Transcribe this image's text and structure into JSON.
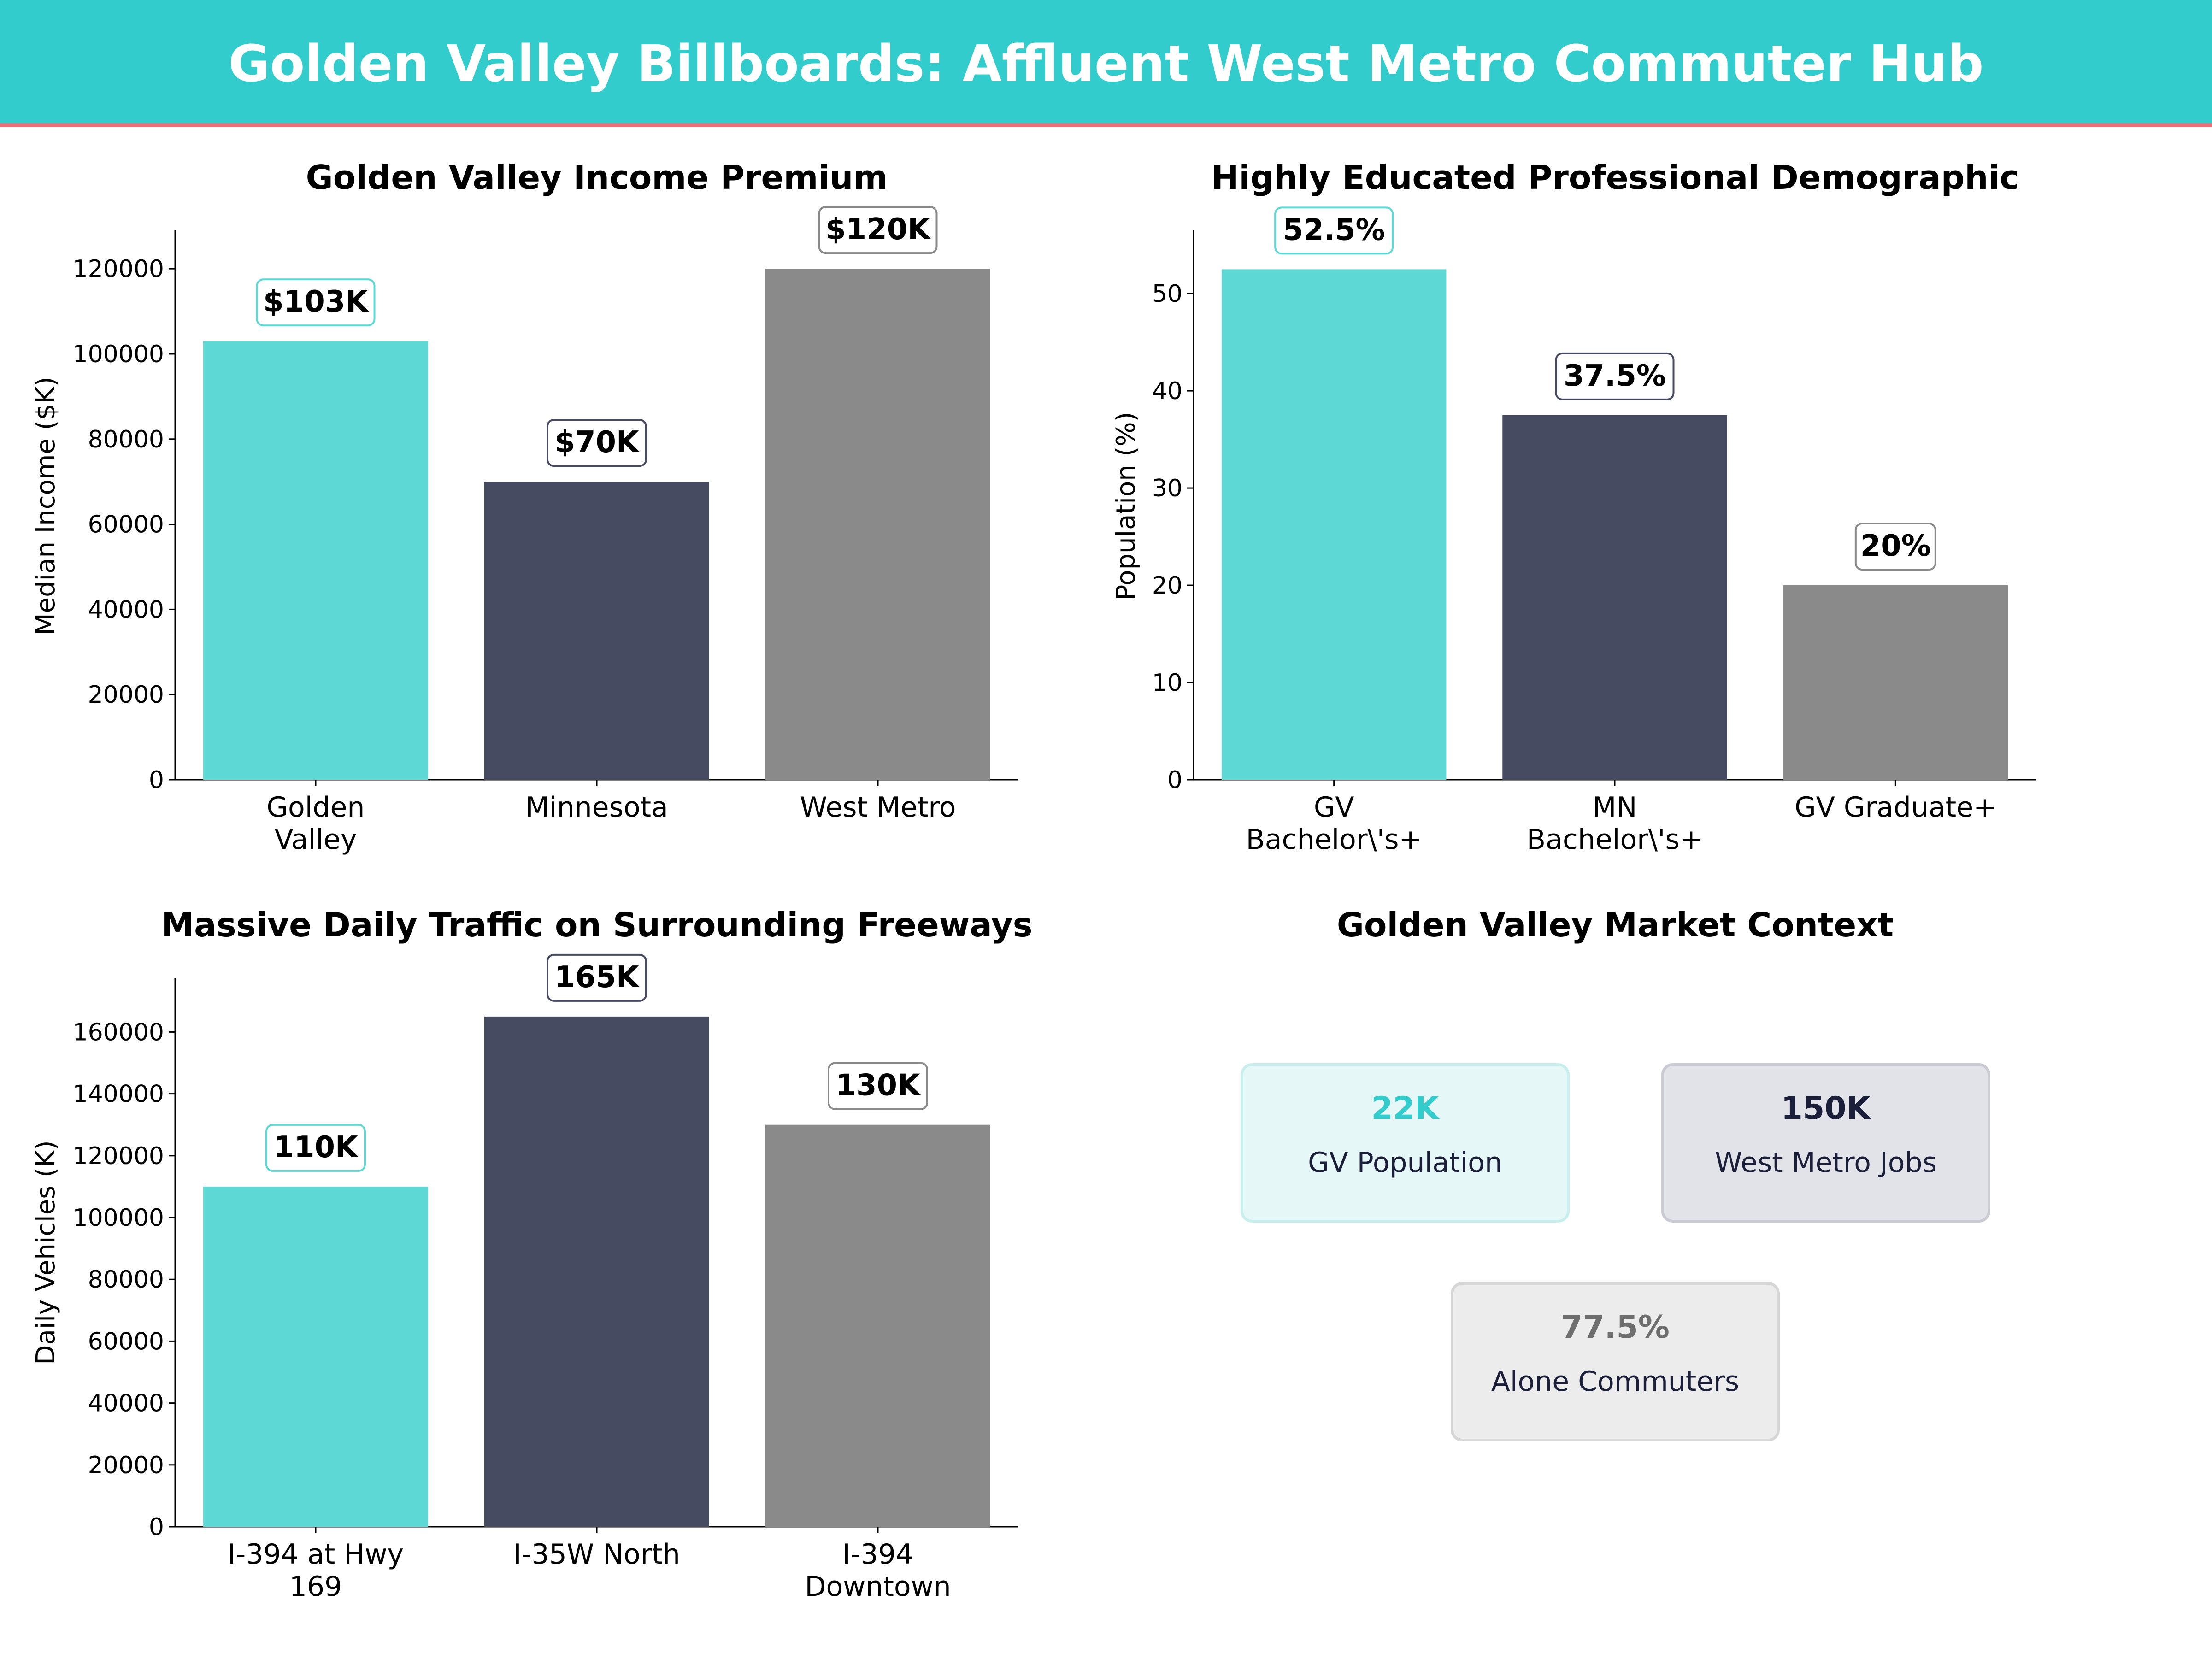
{
  "header": {
    "title": "Golden Valley Billboards: Affluent West Metro Commuter Hub"
  },
  "colors": {
    "banner": "#33CCCC",
    "accent_line": "#E8707A",
    "teal": "#5DD8D4",
    "navy": "#464B62",
    "gray": "#8A8A8A"
  },
  "chart_data": [
    {
      "type": "bar",
      "title": "Golden Valley Income Premium",
      "ylabel": "Median Income ($K)",
      "xlabel": "",
      "categories": [
        [
          "Golden",
          "Valley"
        ],
        [
          "Minnesota"
        ],
        [
          "West Metro"
        ]
      ],
      "values": [
        103000,
        70000,
        120000
      ],
      "labels": [
        "$103K",
        "$70K",
        "$120K"
      ],
      "ylim": [
        0,
        129000
      ],
      "yticks": [
        0,
        20000,
        40000,
        60000,
        80000,
        100000,
        120000
      ],
      "ytick_labels": [
        "0",
        "20000",
        "40000",
        "60000",
        "80000",
        "100000",
        "120000"
      ]
    },
    {
      "type": "bar",
      "title": "Highly Educated Professional Demographic",
      "ylabel": "Population (%)",
      "xlabel": "",
      "categories": [
        [
          "GV",
          "Bachelor\\'s+"
        ],
        [
          "MN",
          "Bachelor\\'s+"
        ],
        [
          "GV Graduate+"
        ]
      ],
      "values": [
        52.5,
        37.5,
        20
      ],
      "labels": [
        "52.5%",
        "37.5%",
        "20%"
      ],
      "ylim": [
        0,
        56.5
      ],
      "yticks": [
        0,
        10,
        20,
        30,
        40,
        50
      ],
      "ytick_labels": [
        "0",
        "10",
        "20",
        "30",
        "40",
        "50"
      ]
    },
    {
      "type": "bar",
      "title": "Massive Daily Traffic on Surrounding Freeways",
      "ylabel": "Daily Vehicles (K)",
      "xlabel": "",
      "categories": [
        [
          "I-394 at Hwy",
          "169"
        ],
        [
          "I-35W North"
        ],
        [
          "I-394",
          "Downtown"
        ]
      ],
      "values": [
        110000,
        165000,
        130000
      ],
      "labels": [
        "110K",
        "165K",
        "130K"
      ],
      "ylim": [
        0,
        177500
      ],
      "yticks": [
        0,
        20000,
        40000,
        60000,
        80000,
        100000,
        120000,
        140000,
        160000
      ],
      "ytick_labels": [
        "0",
        "20000",
        "40000",
        "60000",
        "80000",
        "100000",
        "120000",
        "140000",
        "160000"
      ]
    }
  ],
  "context": {
    "title": "Golden Valley Market Context",
    "cards": [
      {
        "value": "22K",
        "label": "GV Population",
        "value_color": "#33CCCC",
        "fill": "#E6F7F7",
        "stroke": "#C8EEEE"
      },
      {
        "value": "150K",
        "label": "West Metro Jobs",
        "value_color": "#1B1F3A",
        "fill": "#E2E3E8",
        "stroke": "#CACBD2"
      },
      {
        "value": "77.5%",
        "label": "Alone Commuters",
        "value_color": "#6E6E6E",
        "fill": "#ECECEC",
        "stroke": "#D6D6D6"
      }
    ]
  }
}
